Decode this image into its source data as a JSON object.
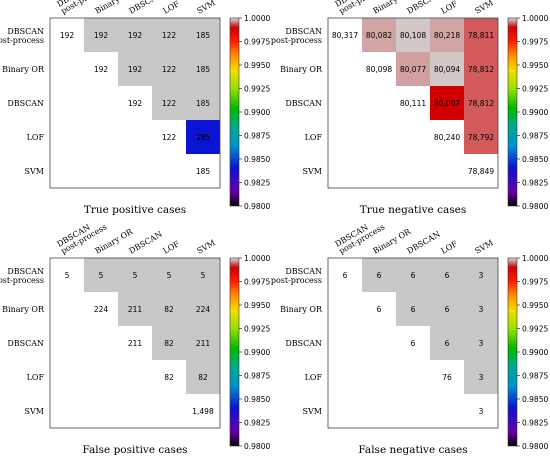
{
  "chart_data": [
    {
      "type": "heatmap",
      "title": "True positive cases",
      "labels": [
        "DBSCAN post-process",
        "Binary OR",
        "DBSCAN",
        "LOF",
        "SVM"
      ],
      "matrix": [
        [
          192,
          192,
          192,
          122,
          185
        ],
        [
          null,
          192,
          192,
          122,
          185
        ],
        [
          null,
          null,
          192,
          122,
          185
        ],
        [
          null,
          null,
          null,
          122,
          185
        ],
        [
          null,
          null,
          null,
          null,
          185
        ]
      ],
      "display_values": [
        [
          "192",
          "192",
          "192",
          "122",
          "185"
        ],
        [
          "",
          "192",
          "192",
          "122",
          "185"
        ],
        [
          "",
          "",
          "192",
          "122",
          "185"
        ],
        [
          "",
          "",
          "",
          "122",
          "185"
        ],
        [
          "",
          "",
          "",
          "",
          "185"
        ]
      ],
      "cell_colors": [
        [
          "#ffffff",
          "#c8c8c8",
          "#c8c8c8",
          "#c8c8c8",
          "#c8c8c8"
        ],
        [
          null,
          "#ffffff",
          "#c8c8c8",
          "#c8c8c8",
          "#c8c8c8"
        ],
        [
          null,
          null,
          "#ffffff",
          "#c8c8c8",
          "#c8c8c8"
        ],
        [
          null,
          null,
          null,
          "#ffffff",
          "#0a14d2"
        ],
        [
          null,
          null,
          null,
          null,
          "#ffffff"
        ]
      ],
      "colorbar": {
        "min": 0.98,
        "max": 1.0,
        "ticks": [
          "1.0000",
          "0.9975",
          "0.9950",
          "0.9925",
          "0.9900",
          "0.9875",
          "0.9850",
          "0.9825",
          "0.9800"
        ]
      }
    },
    {
      "type": "heatmap",
      "title": "True negative cases",
      "labels": [
        "DBSCAN post-process",
        "Binary OR",
        "DBSCAN",
        "LOF",
        "SVM"
      ],
      "matrix": [
        [
          80317,
          80082,
          80108,
          80218,
          78811
        ],
        [
          null,
          80098,
          80077,
          80094,
          78812
        ],
        [
          null,
          null,
          80111,
          80007,
          78812
        ],
        [
          null,
          null,
          null,
          80240,
          78792
        ],
        [
          null,
          null,
          null,
          null,
          78849
        ]
      ],
      "display_values": [
        [
          "80,317",
          "80,082",
          "80,108",
          "80,218",
          "78,811"
        ],
        [
          "",
          "80,098",
          "80,077",
          "80,094",
          "78,812"
        ],
        [
          "",
          "",
          "80,111",
          "80,007",
          "78,812"
        ],
        [
          "",
          "",
          "",
          "80,240",
          "78,792"
        ],
        [
          "",
          "",
          "",
          "",
          "78,849"
        ]
      ],
      "cell_colors": [
        [
          "#ffffff",
          "#d2a5a5",
          "#d2c8c8",
          "#d2a5a5",
          "#d25a5a"
        ],
        [
          null,
          "#ffffff",
          "#d2a0a0",
          "#d2c8c8",
          "#d25a5a"
        ],
        [
          null,
          null,
          "#ffffff",
          "#d20000",
          "#d25a5a"
        ],
        [
          null,
          null,
          null,
          "#ffffff",
          "#d25a5a"
        ],
        [
          null,
          null,
          null,
          null,
          "#ffffff"
        ]
      ],
      "colorbar": {
        "min": 0.98,
        "max": 1.0,
        "ticks": [
          "1.0000",
          "0.9975",
          "0.9950",
          "0.9925",
          "0.9900",
          "0.9875",
          "0.9850",
          "0.9825",
          "0.9800"
        ]
      }
    },
    {
      "type": "heatmap",
      "title": "False positive cases",
      "labels": [
        "DBSCAN post-process",
        "Binary OR",
        "DBSCAN",
        "LOF",
        "SVM"
      ],
      "matrix": [
        [
          5,
          5,
          5,
          5,
          5
        ],
        [
          null,
          224,
          211,
          82,
          224
        ],
        [
          null,
          null,
          211,
          82,
          211
        ],
        [
          null,
          null,
          null,
          82,
          82
        ],
        [
          null,
          null,
          null,
          null,
          1498
        ]
      ],
      "display_values": [
        [
          "5",
          "5",
          "5",
          "5",
          "5"
        ],
        [
          "",
          "224",
          "211",
          "82",
          "224"
        ],
        [
          "",
          "",
          "211",
          "82",
          "211"
        ],
        [
          "",
          "",
          "",
          "82",
          "82"
        ],
        [
          "",
          "",
          "",
          "",
          "1,498"
        ]
      ],
      "cell_colors": [
        [
          "#ffffff",
          "#c8c8c8",
          "#c8c8c8",
          "#c8c8c8",
          "#c8c8c8"
        ],
        [
          null,
          "#ffffff",
          "#c8c8c8",
          "#c8c8c8",
          "#c8c8c8"
        ],
        [
          null,
          null,
          "#ffffff",
          "#c8c8c8",
          "#c8c8c8"
        ],
        [
          null,
          null,
          null,
          "#ffffff",
          "#c8c8c8"
        ],
        [
          null,
          null,
          null,
          null,
          "#ffffff"
        ]
      ],
      "colorbar": {
        "min": 0.98,
        "max": 1.0,
        "ticks": [
          "1.0000",
          "0.9975",
          "0.9950",
          "0.9925",
          "0.9900",
          "0.9875",
          "0.9850",
          "0.9825",
          "0.9800"
        ]
      }
    },
    {
      "type": "heatmap",
      "title": "False negative cases",
      "labels": [
        "DBSCAN post-process",
        "Binary OR",
        "DBSCAN",
        "LOF",
        "SVM"
      ],
      "matrix": [
        [
          6,
          6,
          6,
          6,
          3
        ],
        [
          null,
          6,
          6,
          6,
          3
        ],
        [
          null,
          null,
          6,
          6,
          3
        ],
        [
          null,
          null,
          null,
          76,
          3
        ],
        [
          null,
          null,
          null,
          null,
          3
        ]
      ],
      "display_values": [
        [
          "6",
          "6",
          "6",
          "6",
          "3"
        ],
        [
          "",
          "6",
          "6",
          "6",
          "3"
        ],
        [
          "",
          "",
          "6",
          "6",
          "3"
        ],
        [
          "",
          "",
          "",
          "76",
          "3"
        ],
        [
          "",
          "",
          "",
          "",
          "3"
        ]
      ],
      "cell_colors": [
        [
          "#ffffff",
          "#c8c8c8",
          "#c8c8c8",
          "#c8c8c8",
          "#c8c8c8"
        ],
        [
          null,
          "#ffffff",
          "#c8c8c8",
          "#c8c8c8",
          "#c8c8c8"
        ],
        [
          null,
          null,
          "#ffffff",
          "#c8c8c8",
          "#c8c8c8"
        ],
        [
          null,
          null,
          null,
          "#ffffff",
          "#c8c8c8"
        ],
        [
          null,
          null,
          null,
          null,
          "#ffffff"
        ]
      ],
      "colorbar": {
        "min": 0.98,
        "max": 1.0,
        "ticks": [
          "1.0000",
          "0.9975",
          "0.9950",
          "0.9925",
          "0.9900",
          "0.9875",
          "0.9850",
          "0.9825",
          "0.9800"
        ]
      }
    }
  ]
}
